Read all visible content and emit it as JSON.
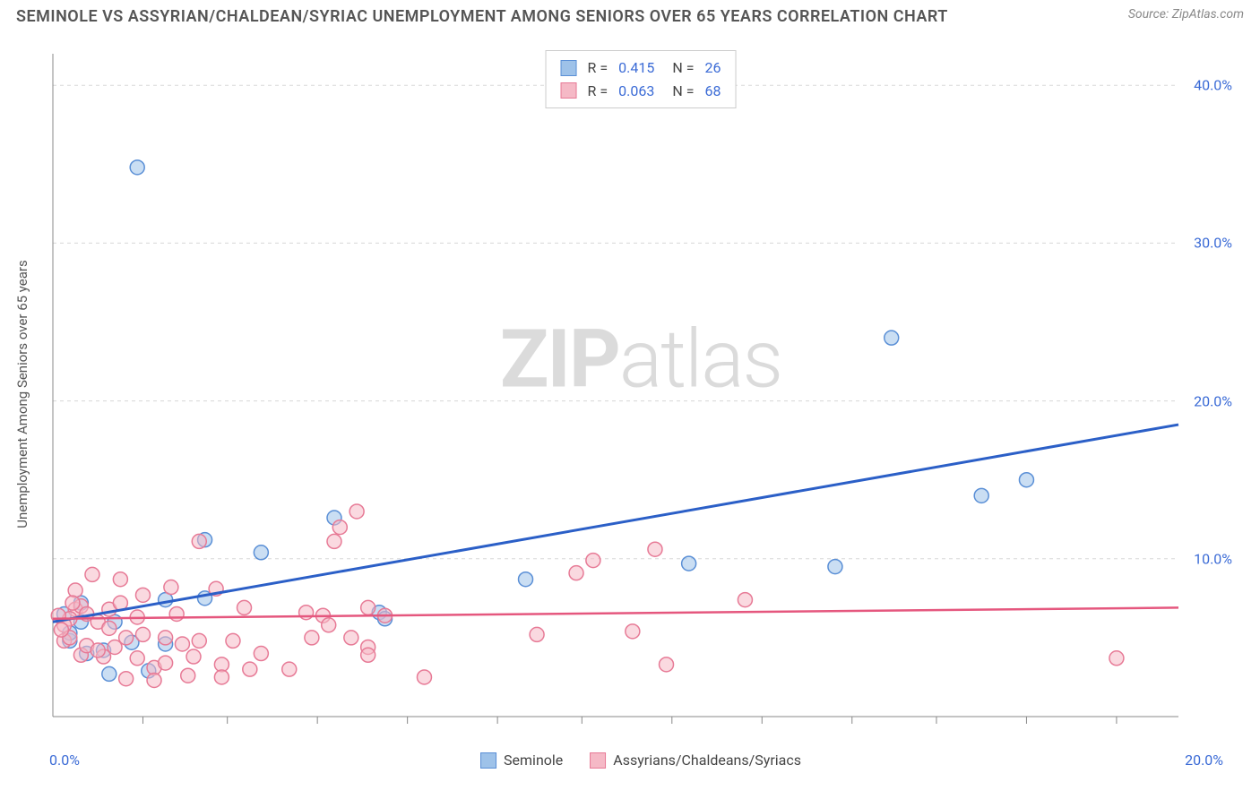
{
  "header": {
    "title": "SEMINOLE VS ASSYRIAN/CHALDEAN/SYRIAC UNEMPLOYMENT AMONG SENIORS OVER 65 YEARS CORRELATION CHART",
    "source": "Source: ZipAtlas.com"
  },
  "chart": {
    "type": "scatter",
    "y_axis_label": "Unemployment Among Seniors over 65 years",
    "background_color": "#ffffff",
    "grid_color": "#d8d8d8",
    "axis_color": "#888888",
    "label_color": "#3b6bd6",
    "title_fontsize": 18,
    "label_fontsize": 16,
    "axis_label_fontsize": 15,
    "xlim": [
      0,
      20
    ],
    "ylim": [
      0,
      42
    ],
    "x_ticks": [
      0,
      20
    ],
    "x_tick_labels": [
      "0.0%",
      "20.0%"
    ],
    "x_minor_ticks": [
      1.6,
      3.1,
      4.7,
      6.3,
      7.9,
      9.4,
      11.0,
      12.6,
      14.2,
      15.7,
      17.3,
      18.9
    ],
    "y_ticks": [
      10,
      20,
      30,
      40
    ],
    "y_tick_labels": [
      "10.0%",
      "20.0%",
      "30.0%",
      "40.0%"
    ],
    "watermark": {
      "prefix": "ZIP",
      "suffix": "atlas"
    },
    "series": [
      {
        "name": "Seminole",
        "fill": "#9ec2e9",
        "stroke": "#5a8fd6",
        "marker_radius": 8,
        "trend_color": "#2b5fc7",
        "trend_width": 3,
        "trend": {
          "x1": 0,
          "y1": 6.0,
          "x2": 20,
          "y2": 18.5
        },
        "R": "0.415",
        "N": "26",
        "points": [
          [
            1.5,
            34.8
          ],
          [
            14.9,
            24.0
          ],
          [
            16.5,
            14.0
          ],
          [
            17.3,
            15.0
          ],
          [
            13.9,
            9.5
          ],
          [
            11.3,
            9.7
          ],
          [
            8.4,
            8.7
          ],
          [
            5.0,
            12.6
          ],
          [
            2.7,
            11.2
          ],
          [
            3.7,
            10.4
          ],
          [
            2.0,
            7.4
          ],
          [
            2.7,
            7.5
          ],
          [
            0.3,
            4.8
          ],
          [
            0.5,
            6.0
          ],
          [
            0.2,
            6.5
          ],
          [
            0.3,
            5.3
          ],
          [
            0.5,
            7.2
          ],
          [
            1.1,
            6.0
          ],
          [
            1.4,
            4.7
          ],
          [
            2.0,
            4.6
          ],
          [
            1.7,
            2.9
          ],
          [
            1.0,
            2.7
          ],
          [
            0.9,
            4.2
          ],
          [
            0.6,
            4.0
          ],
          [
            5.8,
            6.6
          ],
          [
            5.9,
            6.2
          ]
        ]
      },
      {
        "name": "Assyrians/Chaldeans/Syriacs",
        "fill": "#f5b9c6",
        "stroke": "#e77a96",
        "marker_radius": 8,
        "trend_color": "#e5577e",
        "trend_width": 2.5,
        "trend": {
          "x1": 0,
          "y1": 6.2,
          "x2": 20,
          "y2": 6.9
        },
        "R": "0.063",
        "N": "68",
        "points": [
          [
            5.4,
            13.0
          ],
          [
            5.1,
            12.0
          ],
          [
            5.0,
            11.1
          ],
          [
            0.4,
            8.0
          ],
          [
            0.7,
            9.0
          ],
          [
            1.2,
            8.7
          ],
          [
            2.1,
            8.2
          ],
          [
            2.9,
            8.1
          ],
          [
            1.6,
            7.7
          ],
          [
            0.4,
            6.8
          ],
          [
            0.5,
            7.0
          ],
          [
            0.6,
            6.5
          ],
          [
            0.3,
            6.2
          ],
          [
            0.2,
            5.8
          ],
          [
            0.8,
            6.0
          ],
          [
            1.0,
            5.6
          ],
          [
            1.3,
            5.0
          ],
          [
            1.1,
            4.4
          ],
          [
            1.6,
            5.2
          ],
          [
            2.0,
            5.0
          ],
          [
            2.3,
            4.6
          ],
          [
            2.6,
            4.8
          ],
          [
            2.5,
            3.8
          ],
          [
            3.2,
            4.8
          ],
          [
            3.7,
            4.0
          ],
          [
            3.0,
            3.3
          ],
          [
            1.8,
            3.1
          ],
          [
            1.5,
            3.7
          ],
          [
            2.0,
            3.4
          ],
          [
            0.9,
            3.8
          ],
          [
            0.5,
            3.9
          ],
          [
            0.2,
            4.8
          ],
          [
            1.3,
            2.4
          ],
          [
            1.8,
            2.3
          ],
          [
            2.4,
            2.6
          ],
          [
            3.0,
            2.5
          ],
          [
            3.5,
            3.0
          ],
          [
            4.5,
            6.6
          ],
          [
            4.8,
            6.4
          ],
          [
            4.9,
            5.8
          ],
          [
            5.3,
            5.0
          ],
          [
            5.6,
            4.4
          ],
          [
            5.6,
            3.9
          ],
          [
            6.6,
            2.5
          ],
          [
            8.6,
            5.2
          ],
          [
            9.6,
            9.9
          ],
          [
            9.3,
            9.1
          ],
          [
            10.3,
            5.4
          ],
          [
            10.7,
            10.6
          ],
          [
            10.9,
            3.3
          ],
          [
            12.3,
            7.4
          ],
          [
            18.9,
            3.7
          ],
          [
            0.1,
            6.4
          ],
          [
            0.3,
            5.0
          ],
          [
            0.6,
            4.5
          ],
          [
            0.8,
            4.2
          ],
          [
            1.0,
            6.8
          ],
          [
            1.2,
            7.2
          ],
          [
            1.5,
            6.3
          ],
          [
            2.2,
            6.5
          ],
          [
            2.6,
            11.1
          ],
          [
            3.4,
            6.9
          ],
          [
            5.6,
            6.9
          ],
          [
            5.9,
            6.4
          ],
          [
            4.2,
            3.0
          ],
          [
            4.6,
            5.0
          ],
          [
            0.15,
            5.5
          ],
          [
            0.35,
            7.2
          ]
        ]
      }
    ],
    "legend_bottom": [
      {
        "label": "Seminole",
        "fill": "#9ec2e9",
        "stroke": "#5a8fd6"
      },
      {
        "label": "Assyrians/Chaldeans/Syriacs",
        "fill": "#f5b9c6",
        "stroke": "#e77a96"
      }
    ]
  }
}
